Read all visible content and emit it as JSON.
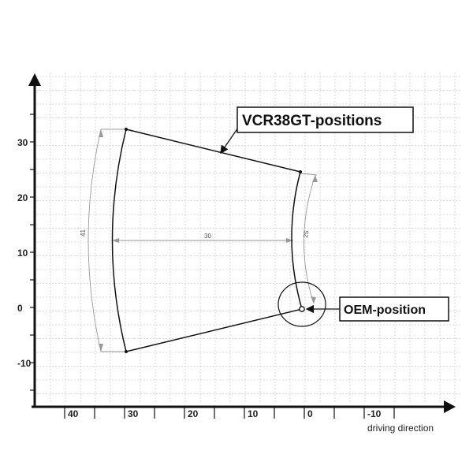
{
  "axes": {
    "y_ticks": [
      {
        "label": "30"
      },
      {
        "label": "20"
      },
      {
        "label": "10"
      },
      {
        "label": "0"
      },
      {
        "label": "-10"
      }
    ],
    "x_ticks": [
      {
        "label": "40"
      },
      {
        "label": "30"
      },
      {
        "label": "20"
      },
      {
        "label": "10"
      },
      {
        "label": "0"
      },
      {
        "label": "-10"
      }
    ],
    "x_caption": "driving direction"
  },
  "dimensions": {
    "width": "30",
    "left_arc": "41",
    "right_arc": "25"
  },
  "callouts": {
    "range_label": "VCR38GT-positions",
    "origin_label": "OEM-position"
  }
}
